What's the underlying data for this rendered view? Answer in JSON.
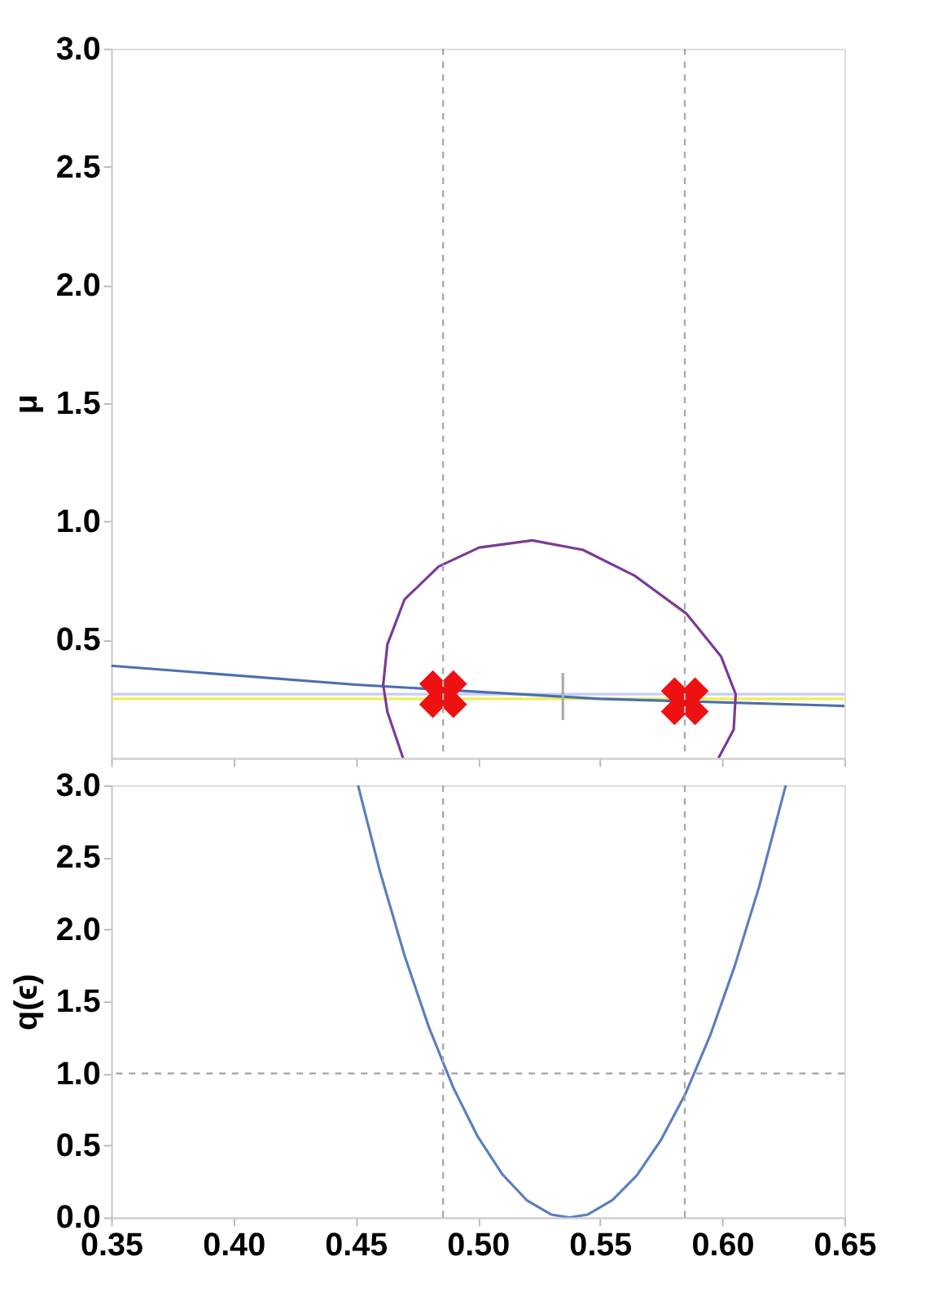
{
  "chart_data": [
    {
      "type": "line",
      "ylabel": "μ",
      "xlim": [
        0.35,
        0.65
      ],
      "ylim": [
        0,
        3
      ],
      "xticks": [
        {
          "value": 0.35,
          "label": null
        },
        {
          "value": 0.4,
          "label": null
        },
        {
          "value": 0.45,
          "label": null
        },
        {
          "value": 0.5,
          "label": null
        },
        {
          "value": 0.55,
          "label": null
        },
        {
          "value": 0.6,
          "label": null
        },
        {
          "value": 0.65,
          "label": null
        }
      ],
      "yticks": [
        {
          "value": 0.5,
          "label": "0.5"
        },
        {
          "value": 1,
          "label": "1.0"
        },
        {
          "value": 1.5,
          "label": "1.5"
        },
        {
          "value": 2,
          "label": "2.0"
        },
        {
          "value": 2.5,
          "label": "2.5"
        },
        {
          "value": 3,
          "label": "3.0"
        }
      ],
      "tick_labels": "y",
      "grid": false,
      "ref_lines": [
        {
          "axis": "x",
          "value": 0.4858,
          "color": "#aaaaaa",
          "line_style": "dashed"
        },
        {
          "axis": "x",
          "value": 0.5847,
          "color": "#aaaaaa",
          "line_style": "dashed"
        }
      ],
      "series": [
        {
          "color": "#c8ccf5",
          "x": [
            0.35,
            0.65
          ],
          "values": [
            0.27,
            0.27
          ]
        },
        {
          "color": "#eeee55",
          "x": [
            0.35,
            0.65
          ],
          "values": [
            0.25,
            0.25
          ]
        },
        {
          "color": "#4a6fae",
          "x": [
            0.35,
            0.45,
            0.55,
            0.65
          ],
          "values": [
            0.39,
            0.31,
            0.25,
            0.22
          ]
        },
        {
          "color": "#7a3a96",
          "x": [
            0.4694,
            0.463,
            0.4613,
            0.463,
            0.47,
            0.484,
            0.5006,
            0.5223,
            0.543,
            0.5643,
            0.5854,
            0.5995,
            0.6055,
            0.6047,
            0.5985
          ],
          "values": [
            0.0,
            0.195,
            0.31,
            0.48,
            0.67,
            0.81,
            0.89,
            0.92,
            0.88,
            0.77,
            0.61,
            0.43,
            0.27,
            0.12,
            0.0
          ]
        },
        {
          "color": "#aaaaaa",
          "x": [
            0.5348,
            0.5348
          ],
          "values": [
            0.16,
            0.36
          ]
        },
        {
          "type": "scatter",
          "marker": "cross",
          "color": "#ee1111",
          "x": [
            0.4858,
            0.5847
          ],
          "values": [
            0.27,
            0.24
          ]
        }
      ]
    },
    {
      "type": "line",
      "ylabel": "q(ϵ)",
      "xlim": [
        0.35,
        0.65
      ],
      "ylim": [
        0,
        3
      ],
      "xticks": [
        {
          "value": 0.35,
          "label": "0.35"
        },
        {
          "value": 0.4,
          "label": "0.40"
        },
        {
          "value": 0.45,
          "label": "0.45"
        },
        {
          "value": 0.5,
          "label": "0.50"
        },
        {
          "value": 0.55,
          "label": "0.55"
        },
        {
          "value": 0.6,
          "label": "0.60"
        },
        {
          "value": 0.65,
          "label": "0.65"
        }
      ],
      "yticks": [
        {
          "value": 0,
          "label": "0.0"
        },
        {
          "value": 0.5,
          "label": "0.5"
        },
        {
          "value": 1,
          "label": "1.0"
        },
        {
          "value": 1.5,
          "label": "1.5"
        },
        {
          "value": 2,
          "label": "2.0"
        },
        {
          "value": 2.5,
          "label": "2.5"
        },
        {
          "value": 3,
          "label": "3.0"
        }
      ],
      "grid": false,
      "ref_lines": [
        {
          "axis": "x",
          "value": 0.4858,
          "color": "#aaaaaa",
          "line_style": "dashed"
        },
        {
          "axis": "x",
          "value": 0.5847,
          "color": "#aaaaaa",
          "line_style": "dashed"
        },
        {
          "axis": "y",
          "value": 1,
          "color": "#aaaaaa",
          "line_style": "dashed"
        }
      ],
      "series": [
        {
          "color": "#5b7fbf",
          "x": [
            0.451,
            0.46,
            0.47,
            0.48,
            0.49,
            0.5,
            0.51,
            0.52,
            0.53,
            0.5375,
            0.545,
            0.555,
            0.565,
            0.575,
            0.585,
            0.595,
            0.605,
            0.615,
            0.626
          ],
          "values": [
            3.0,
            2.4,
            1.82,
            1.32,
            0.9,
            0.56,
            0.3,
            0.12,
            0.02,
            0.0,
            0.02,
            0.12,
            0.29,
            0.54,
            0.86,
            1.26,
            1.74,
            2.29,
            3.0
          ]
        }
      ]
    }
  ]
}
